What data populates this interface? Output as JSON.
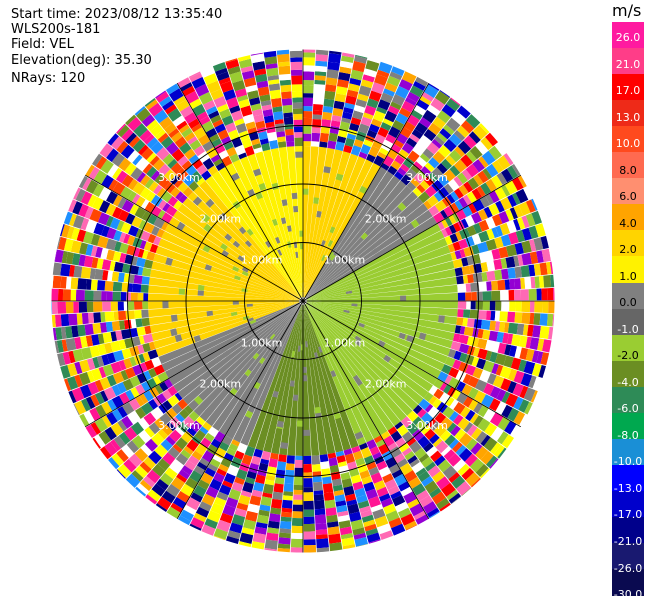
{
  "chart_data": {
    "type": "heatmap",
    "title": "",
    "header": {
      "start_time": "Start time: 2023/08/12 13:35:40",
      "instrument": "WLS200s-181",
      "field": "Field: VEL",
      "elevation": "Elevation(deg): 35.30",
      "nrays": "NRays: 120"
    },
    "rays": 120,
    "range_rings": [
      {
        "km": 1.0,
        "label": "1.00km"
      },
      {
        "km": 2.0,
        "label": "2.00km"
      },
      {
        "km": 3.0,
        "label": "3.00km"
      }
    ],
    "max_range_km": 4.3,
    "clean_range_km": 2.65,
    "spoke_step_deg": 30,
    "colorbar": {
      "unit": "m/s",
      "tick_labels": [
        "26.0",
        "21.0",
        "17.0",
        "13.0",
        "10.0",
        "8.0",
        "6.0",
        "4.0",
        "2.0",
        "1.0",
        "0.0",
        "-1.0",
        "-2.0",
        "-4.0",
        "-6.0",
        "-8.0",
        "-10.0",
        "-13.0",
        "-17.0",
        "-21.0",
        "-26.0",
        "-30.0"
      ],
      "bins": [
        {
          "min": 26.0,
          "max": 30.0,
          "color": "#ff1aa0"
        },
        {
          "min": 21.0,
          "max": 26.0,
          "color": "#ff3d88"
        },
        {
          "min": 17.0,
          "max": 21.0,
          "color": "#ff0000"
        },
        {
          "min": 13.0,
          "max": 17.0,
          "color": "#ee2a18"
        },
        {
          "min": 10.0,
          "max": 13.0,
          "color": "#ff4a1e"
        },
        {
          "min": 8.0,
          "max": 10.0,
          "color": "#ff6a50"
        },
        {
          "min": 6.0,
          "max": 8.0,
          "color": "#ff8f70"
        },
        {
          "min": 4.0,
          "max": 6.0,
          "color": "#ffa400"
        },
        {
          "min": 2.0,
          "max": 4.0,
          "color": "#ffd400"
        },
        {
          "min": 1.0,
          "max": 2.0,
          "color": "#fff200"
        },
        {
          "min": 0.0,
          "max": 1.0,
          "color": "#808080"
        },
        {
          "min": -1.0,
          "max": 0.0,
          "color": "#666666"
        },
        {
          "min": -2.0,
          "max": -1.0,
          "color": "#9acd32"
        },
        {
          "min": -4.0,
          "max": -2.0,
          "color": "#6b8e23"
        },
        {
          "min": -6.0,
          "max": -4.0,
          "color": "#2e8b57"
        },
        {
          "min": -8.0,
          "max": -6.0,
          "color": "#00a84f"
        },
        {
          "min": -10.0,
          "max": -8.0,
          "color": "#1a8fd6"
        },
        {
          "min": -13.0,
          "max": -10.0,
          "color": "#0000ff"
        },
        {
          "min": -17.0,
          "max": -13.0,
          "color": "#0000cc"
        },
        {
          "min": -21.0,
          "max": -17.0,
          "color": "#00008b"
        },
        {
          "min": -26.0,
          "max": -21.0,
          "color": "#191970"
        },
        {
          "min": -30.0,
          "max": -26.0,
          "color": "#0a0a50"
        }
      ]
    },
    "noise_palette": [
      "#ff1493",
      "#0000cd",
      "#ffff00",
      "#ff4500",
      "#2e8b57",
      "#9acd32",
      "#ffffff",
      "#000080",
      "#ff69b4",
      "#808080",
      "#ffa500",
      "#ff0000",
      "#1e90ff",
      "#9400d3",
      "#ffd700",
      "#6b8e23"
    ],
    "clean_field_by_sector": [
      {
        "az_from": 0,
        "az_to": 30,
        "color": "#ffd400"
      },
      {
        "az_from": 30,
        "az_to": 60,
        "color": "#808080"
      },
      {
        "az_from": 60,
        "az_to": 100,
        "color": "#9acd32"
      },
      {
        "az_from": 100,
        "az_to": 160,
        "color": "#9acd32"
      },
      {
        "az_from": 160,
        "az_to": 200,
        "color": "#6b8e23"
      },
      {
        "az_from": 200,
        "az_to": 250,
        "color": "#808080"
      },
      {
        "az_from": 250,
        "az_to": 320,
        "color": "#ffd400"
      },
      {
        "az_from": 320,
        "az_to": 360,
        "color": "#fff200"
      }
    ]
  }
}
